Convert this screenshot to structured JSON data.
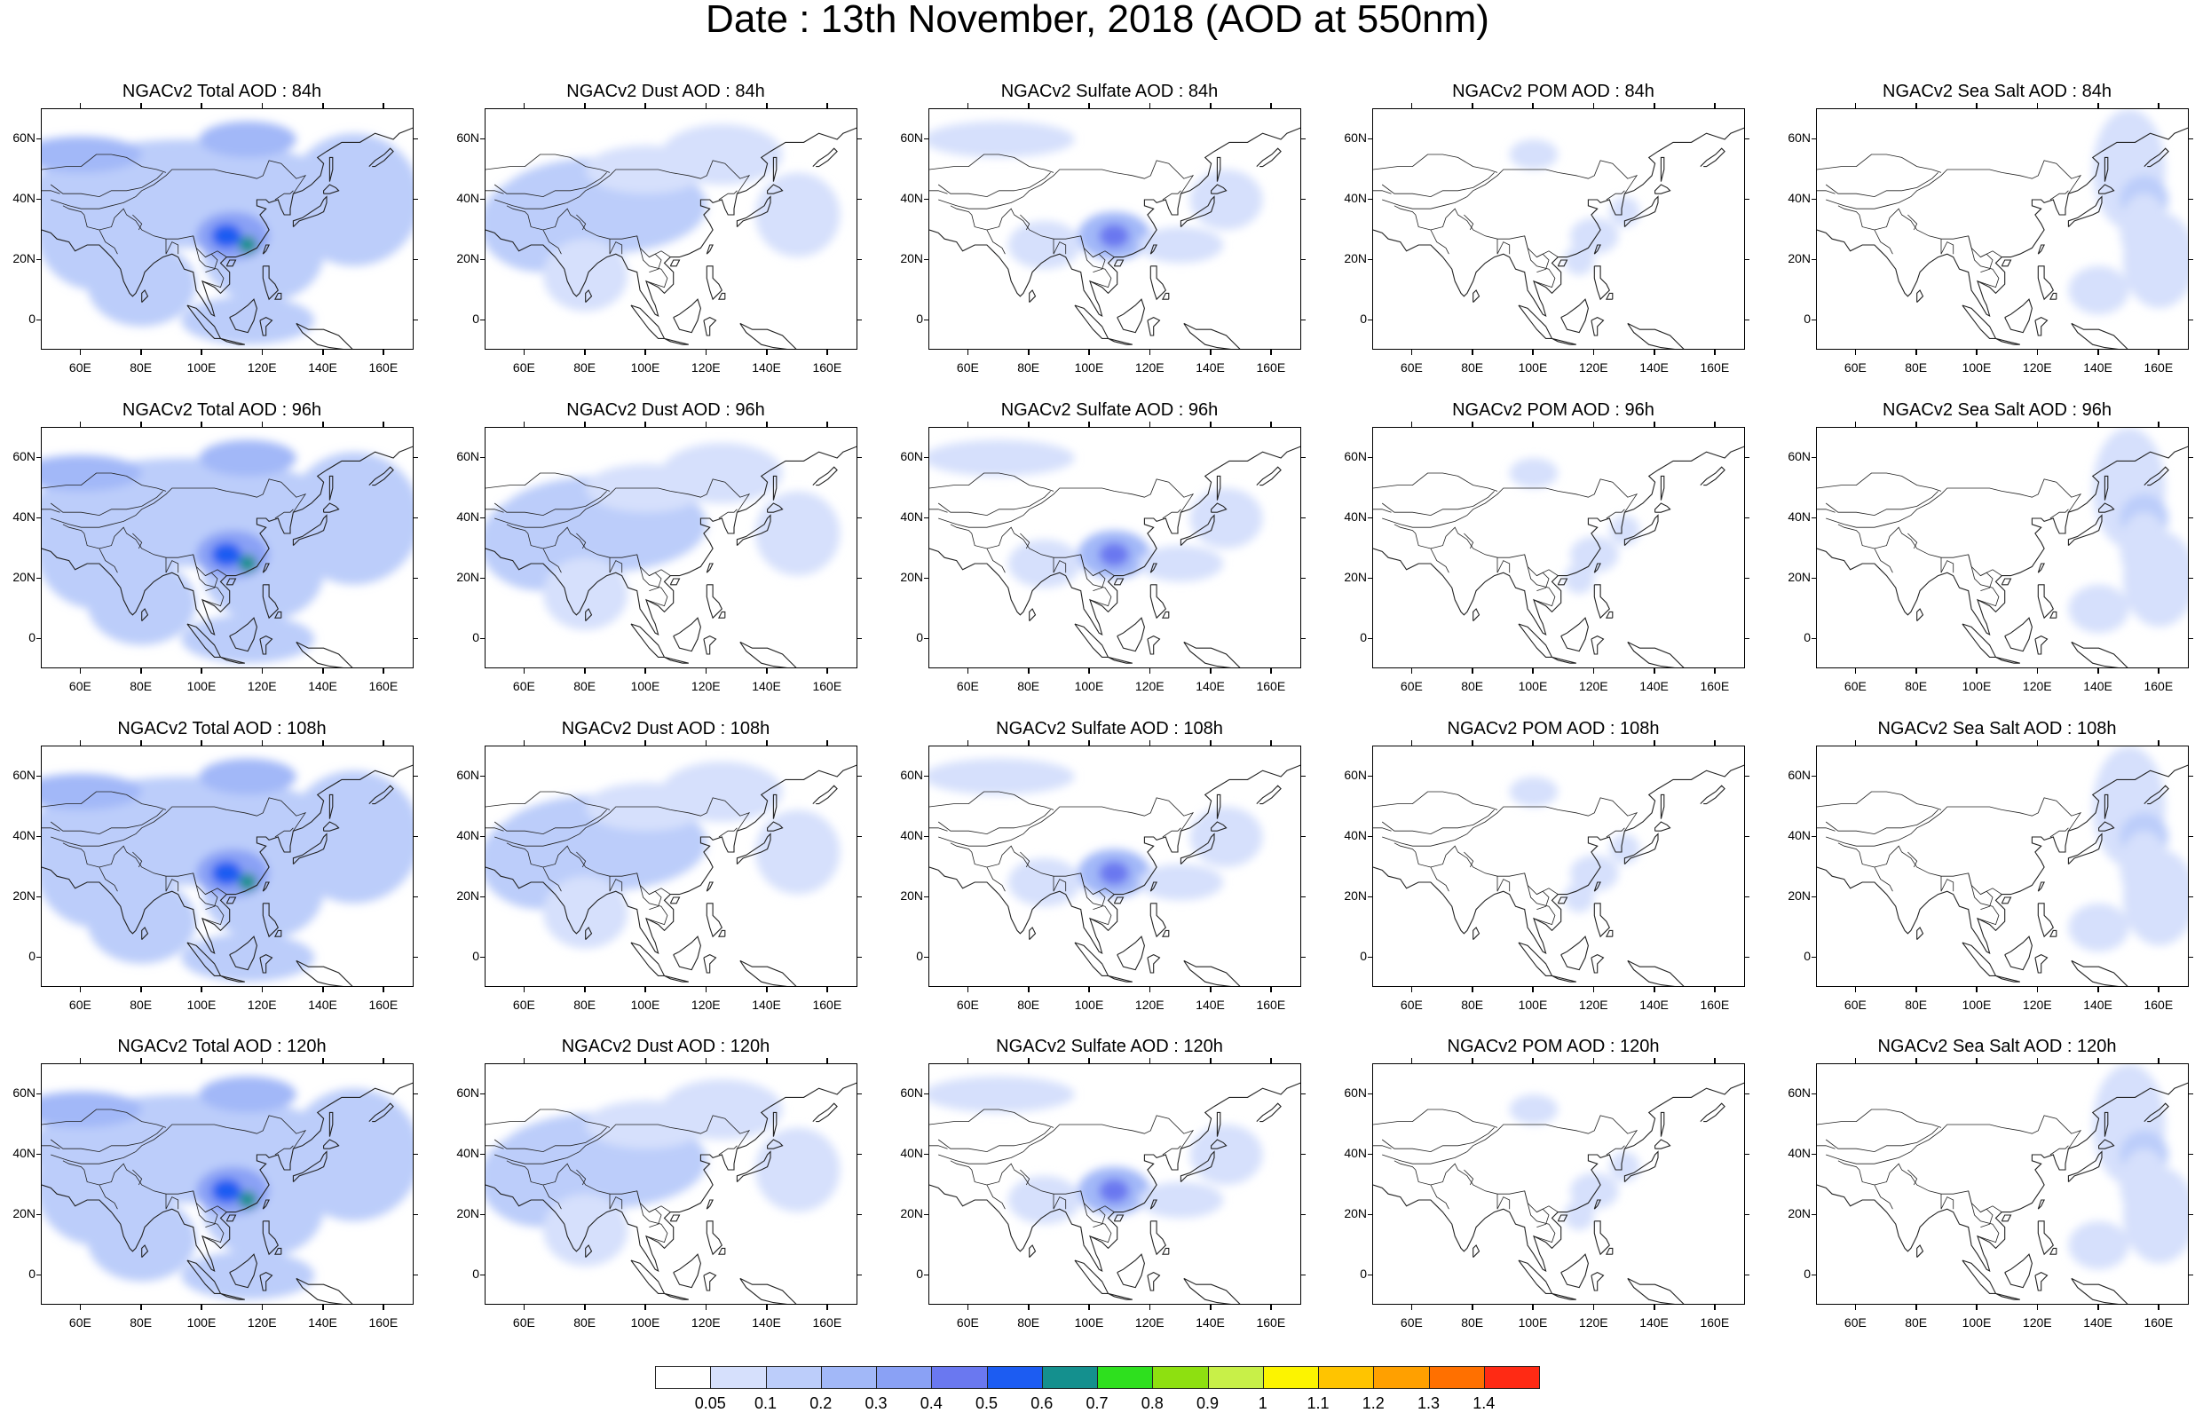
{
  "title": "Date : 13th November, 2018 (AOD at 550nm)",
  "lat_labels": [
    "60N",
    "40N",
    "20N",
    "0"
  ],
  "lon_labels": [
    "60E",
    "80E",
    "100E",
    "120E",
    "140E",
    "160E"
  ],
  "panels": [
    {
      "row": 0,
      "col": 0,
      "title": "NGACv2 Total AOD : 84h",
      "species": "total",
      "hour": "84h"
    },
    {
      "row": 0,
      "col": 1,
      "title": "NGACv2 Dust AOD : 84h",
      "species": "dust",
      "hour": "84h"
    },
    {
      "row": 0,
      "col": 2,
      "title": "NGACv2 Sulfate AOD : 84h",
      "species": "sulfate",
      "hour": "84h"
    },
    {
      "row": 0,
      "col": 3,
      "title": "NGACv2 POM AOD : 84h",
      "species": "pom",
      "hour": "84h"
    },
    {
      "row": 0,
      "col": 4,
      "title": "NGACv2 Sea Salt AOD : 84h",
      "species": "seasalt",
      "hour": "84h"
    },
    {
      "row": 1,
      "col": 0,
      "title": "NGACv2 Total AOD : 96h",
      "species": "total",
      "hour": "96h"
    },
    {
      "row": 1,
      "col": 1,
      "title": "NGACv2 Dust AOD : 96h",
      "species": "dust",
      "hour": "96h"
    },
    {
      "row": 1,
      "col": 2,
      "title": "NGACv2 Sulfate AOD : 96h",
      "species": "sulfate",
      "hour": "96h"
    },
    {
      "row": 1,
      "col": 3,
      "title": "NGACv2 POM AOD : 96h",
      "species": "pom",
      "hour": "96h"
    },
    {
      "row": 1,
      "col": 4,
      "title": "NGACv2 Sea Salt AOD : 96h",
      "species": "seasalt",
      "hour": "96h"
    },
    {
      "row": 2,
      "col": 0,
      "title": "NGACv2 Total AOD : 108h",
      "species": "total",
      "hour": "108h"
    },
    {
      "row": 2,
      "col": 1,
      "title": "NGACv2 Dust AOD : 108h",
      "species": "dust",
      "hour": "108h"
    },
    {
      "row": 2,
      "col": 2,
      "title": "NGACv2 Sulfate AOD : 108h",
      "species": "sulfate",
      "hour": "108h"
    },
    {
      "row": 2,
      "col": 3,
      "title": "NGACv2 POM AOD : 108h",
      "species": "pom",
      "hour": "108h"
    },
    {
      "row": 2,
      "col": 4,
      "title": "NGACv2 Sea Salt AOD : 108h",
      "species": "seasalt",
      "hour": "108h"
    },
    {
      "row": 3,
      "col": 0,
      "title": "NGACv2 Total AOD : 120h",
      "species": "total",
      "hour": "120h"
    },
    {
      "row": 3,
      "col": 1,
      "title": "NGACv2 Dust AOD : 120h",
      "species": "dust",
      "hour": "120h"
    },
    {
      "row": 3,
      "col": 2,
      "title": "NGACv2 Sulfate AOD : 120h",
      "species": "sulfate",
      "hour": "120h"
    },
    {
      "row": 3,
      "col": 3,
      "title": "NGACv2 POM AOD : 120h",
      "species": "pom",
      "hour": "120h"
    },
    {
      "row": 3,
      "col": 4,
      "title": "NGACv2 Sea Salt  AOD : 120h",
      "species": "seasalt",
      "hour": "120h"
    }
  ],
  "colorbar": {
    "colors": [
      "#ffffff",
      "#d6e0fc",
      "#bccdfa",
      "#a2b8f8",
      "#8aa1f5",
      "#6a78f0",
      "#1c5cf2",
      "#14908e",
      "#2ee01e",
      "#8ee010",
      "#c8f048",
      "#fcf400",
      "#ffc400",
      "#ffa000",
      "#ff7000",
      "#ff2a14"
    ],
    "labels": [
      "0.05",
      "0.1",
      "0.2",
      "0.3",
      "0.4",
      "0.5",
      "0.6",
      "0.7",
      "0.8",
      "0.9",
      "1",
      "1.1",
      "1.2",
      "1.3",
      "1.4"
    ]
  }
}
